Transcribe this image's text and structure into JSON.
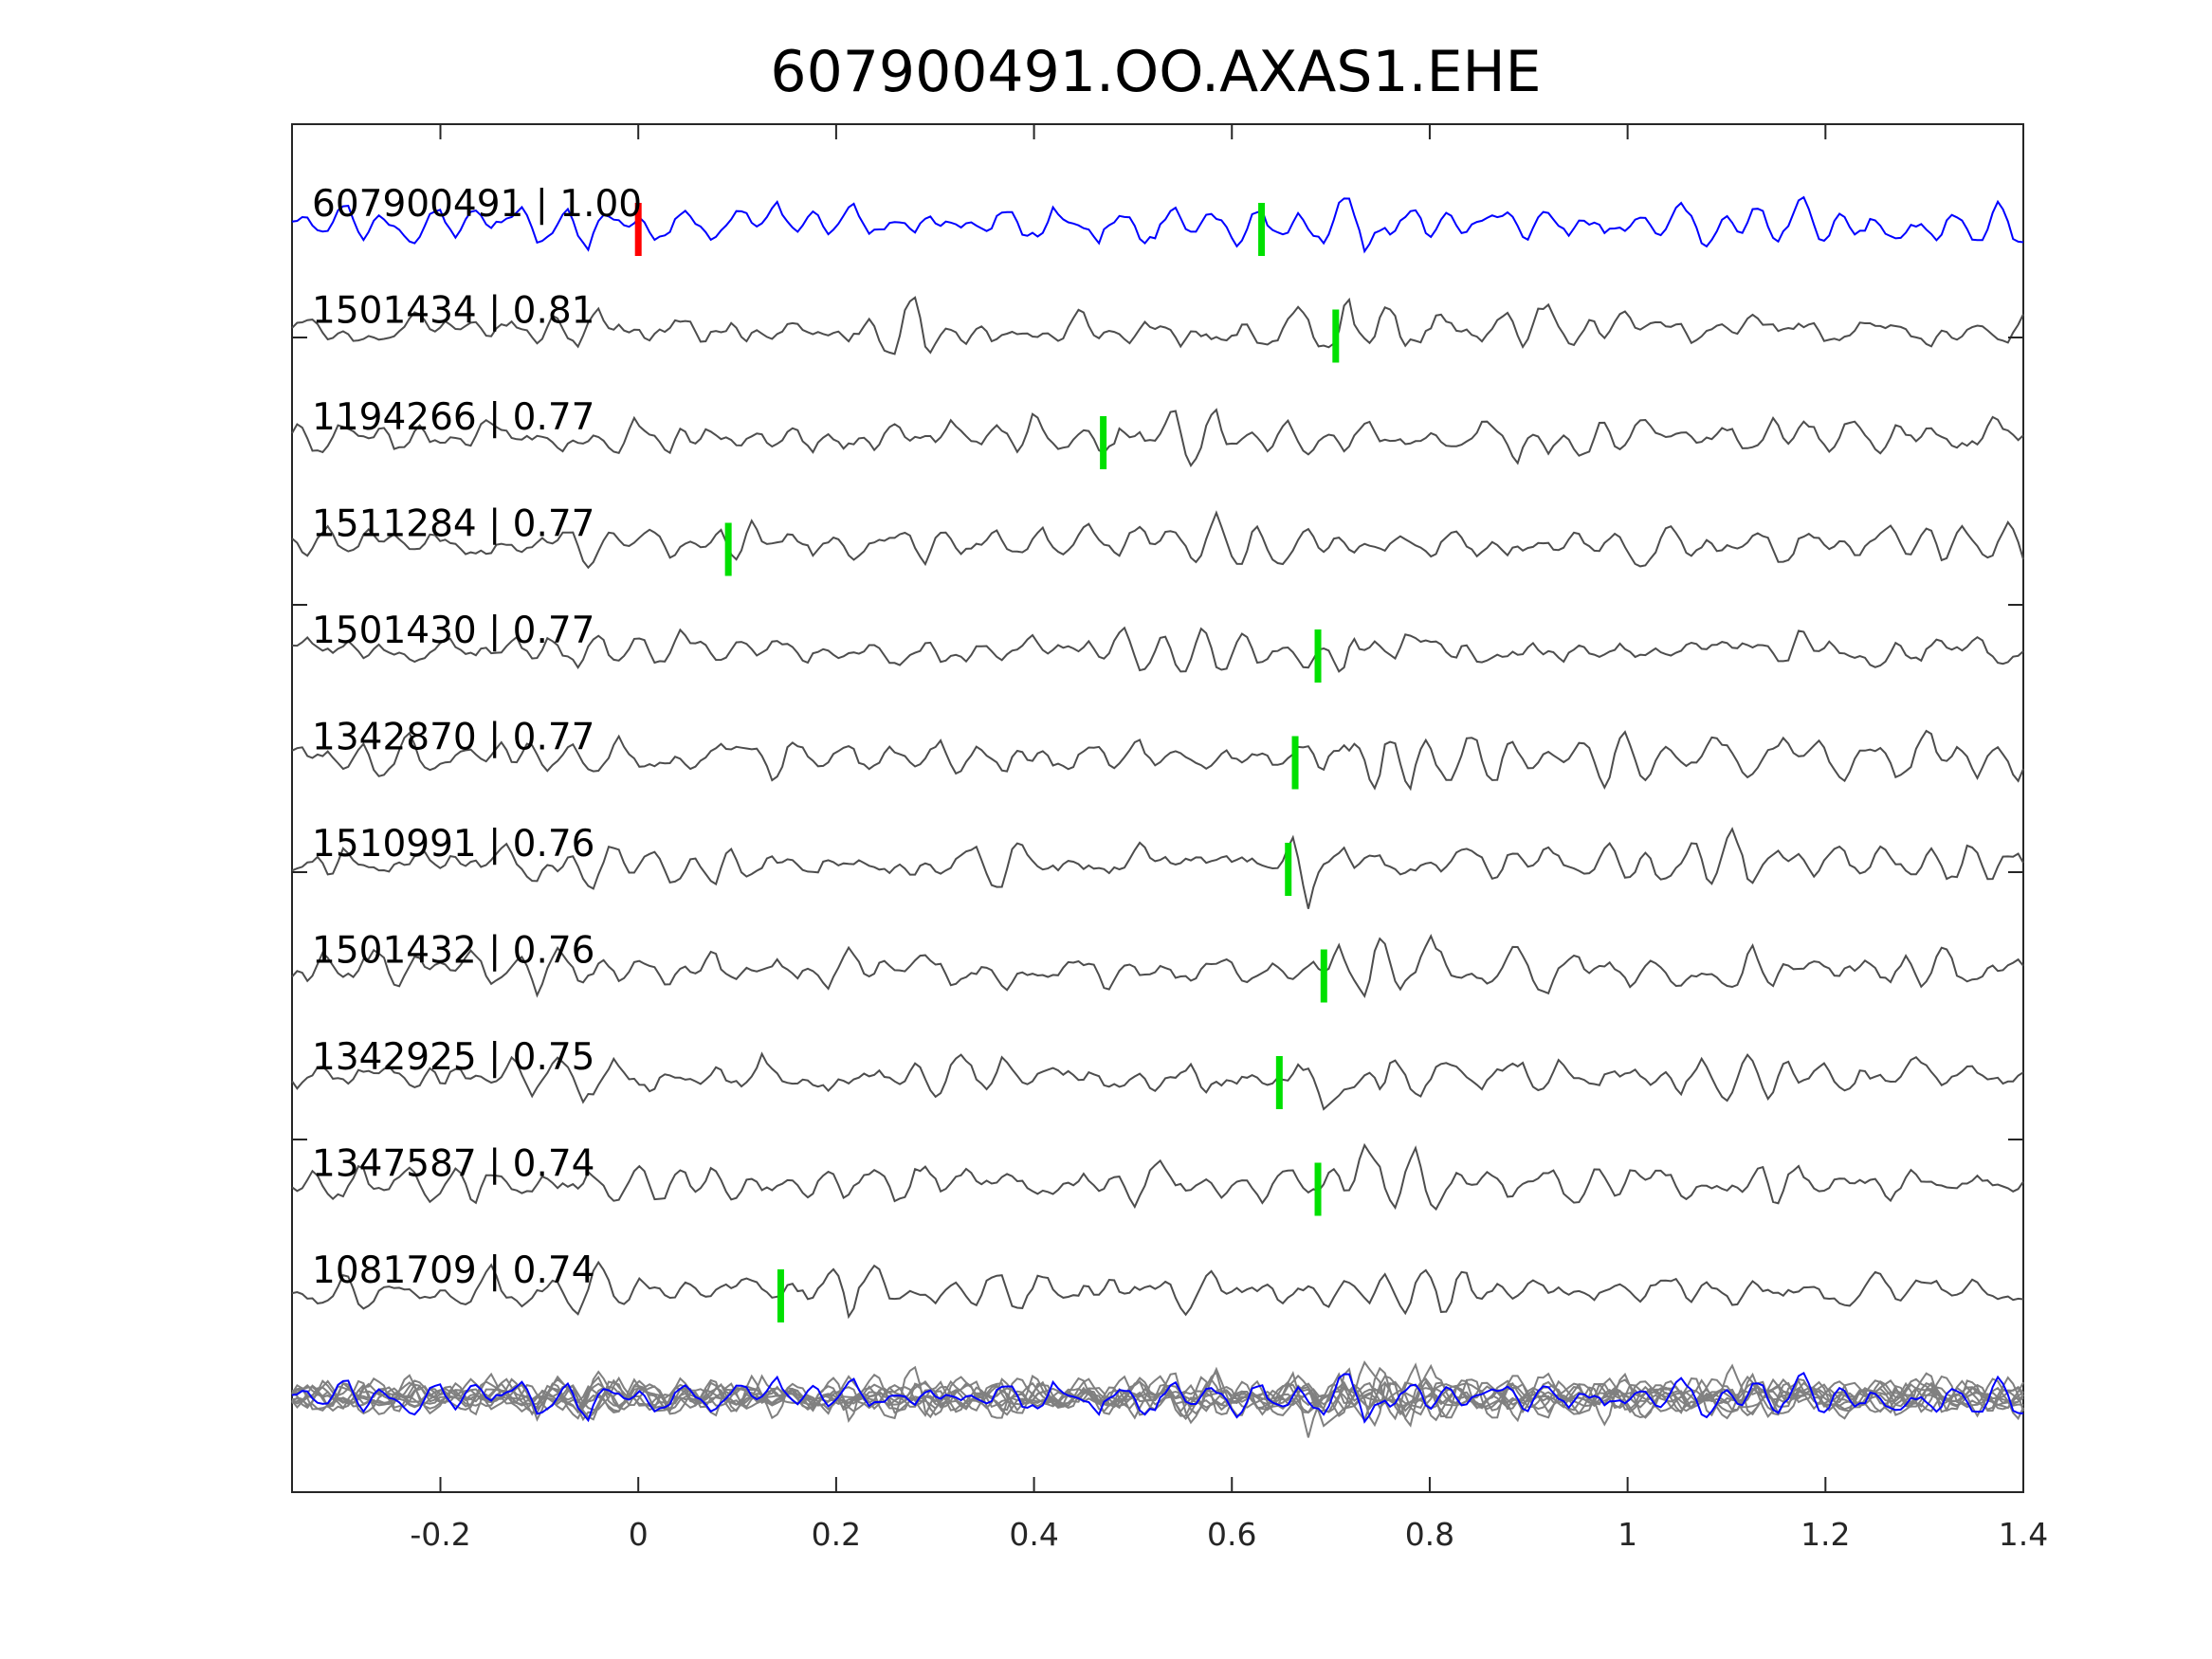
{
  "chart_data": {
    "type": "line",
    "title": "607900491.OO.AXAS1.EHE",
    "xlabel": "",
    "ylabel": "",
    "xlim": [
      -0.35,
      1.4
    ],
    "xticks": [
      -0.2,
      0,
      0.2,
      0.4,
      0.6,
      0.8,
      1,
      1.2,
      1.4
    ],
    "xtick_labels": [
      "-0.2",
      "0",
      "0.2",
      "0.4",
      "0.6",
      "0.8",
      "1",
      "1.2",
      "1.4"
    ],
    "grid": false,
    "reference_pick": 0,
    "colors": {
      "template": "#0000ff",
      "trace": "#4d4d4d",
      "stack": "#808080",
      "reference_pick": "#ff0000",
      "pick": "#00e000"
    },
    "series": [
      {
        "name": "607900491",
        "correlation": "1.00",
        "label": "607900491 | 1.00",
        "pick": 0.63,
        "template": true
      },
      {
        "name": "1501434",
        "correlation": "0.81",
        "label": "1501434 | 0.81",
        "pick": 0.705
      },
      {
        "name": "1194266",
        "correlation": "0.77",
        "label": "1194266 | 0.77",
        "pick": 0.47
      },
      {
        "name": "1511284",
        "correlation": "0.77",
        "label": "1511284 | 0.77",
        "pick": 0.091
      },
      {
        "name": "1501430",
        "correlation": "0.77",
        "label": "1501430 | 0.77",
        "pick": 0.687
      },
      {
        "name": "1342870",
        "correlation": "0.77",
        "label": "1342870 | 0.77",
        "pick": 0.664
      },
      {
        "name": "1510991",
        "correlation": "0.76",
        "label": "1510991 | 0.76",
        "pick": 0.657
      },
      {
        "name": "1501432",
        "correlation": "0.76",
        "label": "1501432 | 0.76",
        "pick": 0.693
      },
      {
        "name": "1342925",
        "correlation": "0.75",
        "label": "1342925 | 0.75",
        "pick": 0.648
      },
      {
        "name": "1347587",
        "correlation": "0.74",
        "label": "1347587 | 0.74",
        "pick": 0.687
      },
      {
        "name": "1081709",
        "correlation": "0.74",
        "label": "1081709 | 0.74",
        "pick": 0.144
      }
    ]
  }
}
